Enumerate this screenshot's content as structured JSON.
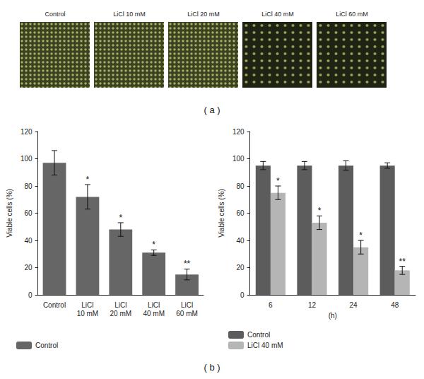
{
  "panel_labels": [
    "( a )",
    "( b )"
  ],
  "images": {
    "labels": [
      "Control",
      "LiCl 10 mM",
      "LiCl 20 mM",
      "LiCl 40 mM",
      "LiCl 60 mM"
    ]
  },
  "chart_data": [
    {
      "type": "bar",
      "categories": [
        "Control",
        "LiCl 10 mM",
        "LiCl 20 mM",
        "LiCl 40 mM",
        "LiCl 60 mM"
      ],
      "series": [
        {
          "name": "Control",
          "color": "#666666",
          "values": [
            97,
            72,
            48,
            31,
            15
          ],
          "errors": [
            9,
            9,
            5,
            2,
            4
          ]
        }
      ],
      "ylabel": "Viable cells (%)",
      "ylim": [
        0,
        120
      ],
      "yticks": [
        0,
        20,
        40,
        60,
        80,
        100,
        120
      ],
      "grid": false,
      "legend": "bottom left",
      "annotations": [
        {
          "category": "LiCl 10 mM",
          "series": "Control",
          "text": "*"
        },
        {
          "category": "LiCl 20 mM",
          "series": "Control",
          "text": "*"
        },
        {
          "category": "LiCl 40 mM",
          "series": "Control",
          "text": "*"
        },
        {
          "category": "LiCl 60 mM",
          "series": "Control",
          "text": "**"
        }
      ]
    },
    {
      "type": "bar",
      "categories": [
        "6",
        "12",
        "24",
        "48"
      ],
      "xlabel": "(h)",
      "series": [
        {
          "name": "Control",
          "color": "#5c5c5c",
          "values": [
            95,
            95,
            95,
            95
          ],
          "errors": [
            3,
            3,
            3.5,
            2
          ]
        },
        {
          "name": "LiCl 40 mM",
          "color": "#b5b5b5",
          "values": [
            75,
            53,
            35,
            18
          ],
          "errors": [
            5,
            5,
            5,
            3
          ]
        }
      ],
      "ylabel": "Viable cells (%)",
      "ylim": [
        0,
        120
      ],
      "yticks": [
        0,
        20,
        40,
        60,
        80,
        100,
        120
      ],
      "grid": false,
      "legend": "bottom left",
      "annotations": [
        {
          "category": "6",
          "series": "LiCl 40 mM",
          "text": "*"
        },
        {
          "category": "12",
          "series": "LiCl 40 mM",
          "text": "*"
        },
        {
          "category": "24",
          "series": "LiCl 40 mM",
          "text": "*"
        },
        {
          "category": "48",
          "series": "LiCl 40 mM",
          "text": "**"
        }
      ]
    }
  ]
}
